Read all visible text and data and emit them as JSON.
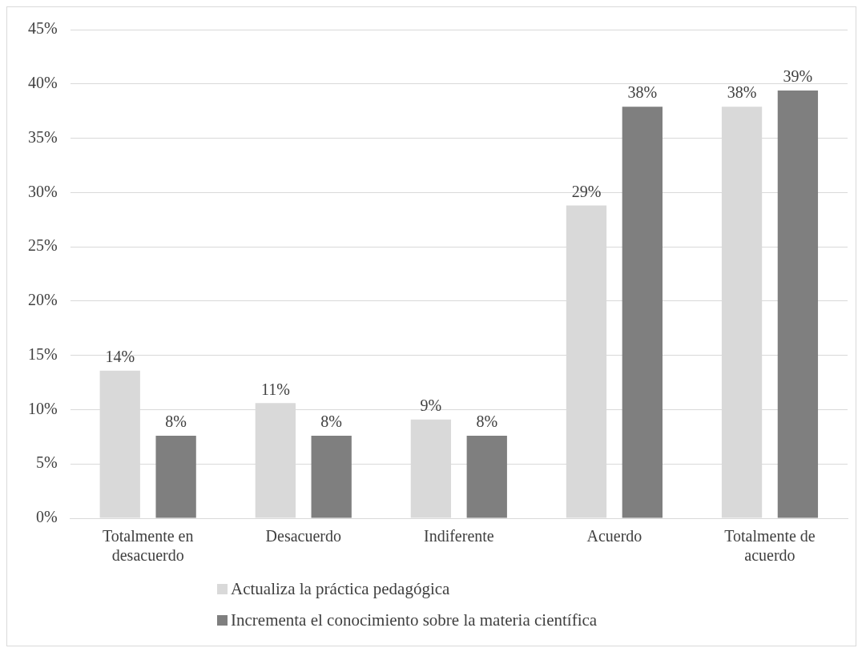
{
  "chart_data": {
    "type": "bar",
    "categories": [
      "Totalmente en desacuerdo",
      "Desacuerdo",
      "Indiferente",
      "Acuerdo",
      "Totalmente de acuerdo"
    ],
    "series": [
      {
        "name": "Actualiza la práctica pedagógica",
        "color": "#d9d9d9",
        "values": [
          13.6,
          10.6,
          9.1,
          28.8,
          37.9
        ],
        "value_labels": [
          "14%",
          "11%",
          "9%",
          "29%",
          "38%"
        ]
      },
      {
        "name": "Incrementa el conocimiento sobre la materia científica",
        "color": "#7f7f7f",
        "values": [
          7.6,
          7.6,
          7.6,
          37.9,
          39.4
        ],
        "value_labels": [
          "8%",
          "8%",
          "8%",
          "38%",
          "39%"
        ]
      }
    ],
    "ylim": [
      0,
      45
    ],
    "yticks": [
      {
        "value": 0,
        "label": "0%"
      },
      {
        "value": 5,
        "label": "5%"
      },
      {
        "value": 10,
        "label": "10%"
      },
      {
        "value": 15,
        "label": "15%"
      },
      {
        "value": 20,
        "label": "20%"
      },
      {
        "value": 25,
        "label": "25%"
      },
      {
        "value": 30,
        "label": "30%"
      },
      {
        "value": 35,
        "label": "35%"
      },
      {
        "value": 40,
        "label": "40%"
      },
      {
        "value": 45,
        "label": "45%"
      }
    ],
    "grid": "y",
    "legend": "bottom"
  }
}
